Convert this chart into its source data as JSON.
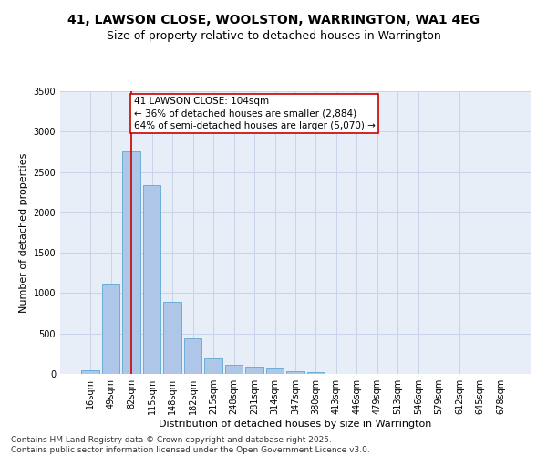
{
  "title_line1": "41, LAWSON CLOSE, WOOLSTON, WARRINGTON, WA1 4EG",
  "title_line2": "Size of property relative to detached houses in Warrington",
  "xlabel": "Distribution of detached houses by size in Warrington",
  "ylabel": "Number of detached properties",
  "bar_color": "#aec6e8",
  "bar_edge_color": "#6baed6",
  "grid_color": "#c8d4e8",
  "background_color": "#e8eef8",
  "categories": [
    "16sqm",
    "49sqm",
    "82sqm",
    "115sqm",
    "148sqm",
    "182sqm",
    "215sqm",
    "248sqm",
    "281sqm",
    "314sqm",
    "347sqm",
    "380sqm",
    "413sqm",
    "446sqm",
    "479sqm",
    "513sqm",
    "546sqm",
    "579sqm",
    "612sqm",
    "645sqm",
    "678sqm"
  ],
  "values": [
    45,
    1120,
    2760,
    2340,
    890,
    440,
    195,
    115,
    95,
    65,
    35,
    20,
    5,
    2,
    1,
    0,
    0,
    0,
    0,
    0,
    0
  ],
  "ylim": [
    0,
    3500
  ],
  "yticks": [
    0,
    500,
    1000,
    1500,
    2000,
    2500,
    3000,
    3500
  ],
  "property_line_x": 2,
  "property_line_color": "#cc0000",
  "annotation_text": "41 LAWSON CLOSE: 104sqm\n← 36% of detached houses are smaller (2,884)\n64% of semi-detached houses are larger (5,070) →",
  "annotation_box_color": "#ffffff",
  "annotation_box_edge": "#cc0000",
  "footer_line1": "Contains HM Land Registry data © Crown copyright and database right 2025.",
  "footer_line2": "Contains public sector information licensed under the Open Government Licence v3.0.",
  "title_fontsize": 10,
  "subtitle_fontsize": 9,
  "axis_label_fontsize": 8,
  "tick_fontsize": 7,
  "annotation_fontsize": 7.5,
  "footer_fontsize": 6.5
}
